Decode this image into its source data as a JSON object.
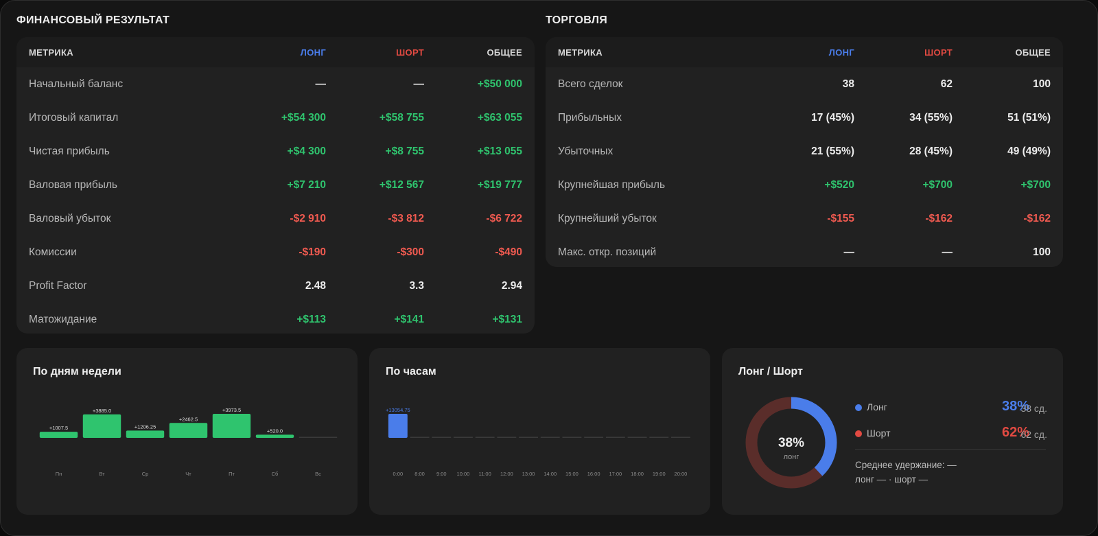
{
  "financial": {
    "title": "ФИНАНСОВЫЙ РЕЗУЛЬТАТ",
    "headers": {
      "metric": "МЕТРИКА",
      "long": "ЛОНГ",
      "short": "ШОРТ",
      "total": "ОБЩЕЕ"
    },
    "rows": [
      {
        "label": "Начальный баланс",
        "long": "—",
        "short": "—",
        "total": "+$50 000",
        "tone": [
          "neu",
          "neu",
          "pos"
        ]
      },
      {
        "label": "Итоговый капитал",
        "long": "+$54 300",
        "short": "+$58 755",
        "total": "+$63 055",
        "tone": [
          "pos",
          "pos",
          "pos"
        ]
      },
      {
        "label": "Чистая прибыль",
        "long": "+$4 300",
        "short": "+$8 755",
        "total": "+$13 055",
        "tone": [
          "pos",
          "pos",
          "pos"
        ]
      },
      {
        "label": "Валовая прибыль",
        "long": "+$7 210",
        "short": "+$12 567",
        "total": "+$19 777",
        "tone": [
          "pos",
          "pos",
          "pos"
        ]
      },
      {
        "label": "Валовый убыток",
        "long": "-$2 910",
        "short": "-$3 812",
        "total": "-$6 722",
        "tone": [
          "neg",
          "neg",
          "neg"
        ]
      },
      {
        "label": "Комиссии",
        "long": "-$190",
        "short": "-$300",
        "total": "-$490",
        "tone": [
          "neg",
          "neg",
          "neg"
        ]
      },
      {
        "label": "Profit Factor",
        "long": "2.48",
        "short": "3.3",
        "total": "2.94",
        "tone": [
          "neu",
          "neu",
          "neu"
        ]
      },
      {
        "label": "Матожидание",
        "long": "+$113",
        "short": "+$141",
        "total": "+$131",
        "tone": [
          "pos",
          "pos",
          "pos"
        ]
      }
    ]
  },
  "trading": {
    "title": "ТОРГОВЛЯ",
    "headers": {
      "metric": "МЕТРИКА",
      "long": "ЛОНГ",
      "short": "ШОРТ",
      "total": "ОБЩЕЕ"
    },
    "rows": [
      {
        "label": "Всего сделок",
        "long": "38",
        "short": "62",
        "total": "100",
        "tone": [
          "neu",
          "neu",
          "neu"
        ]
      },
      {
        "label": "Прибыльных",
        "long": "17 (45%)",
        "short": "34 (55%)",
        "total": "51 (51%)",
        "tone": [
          "neu",
          "neu",
          "neu"
        ]
      },
      {
        "label": "Убыточных",
        "long": "21 (55%)",
        "short": "28 (45%)",
        "total": "49 (49%)",
        "tone": [
          "neu",
          "neu",
          "neu"
        ]
      },
      {
        "label": "Крупнейшая прибыль",
        "long": "+$520",
        "short": "+$700",
        "total": "+$700",
        "tone": [
          "pos",
          "pos",
          "pos"
        ]
      },
      {
        "label": "Крупнейший убыток",
        "long": "-$155",
        "short": "-$162",
        "total": "-$162",
        "tone": [
          "neg",
          "neg",
          "neg"
        ]
      },
      {
        "label": "Макс. откр. позиций",
        "long": "—",
        "short": "—",
        "total": "100",
        "tone": [
          "neu",
          "neu",
          "neu"
        ]
      }
    ]
  },
  "weekday_card": {
    "title": "По дням недели"
  },
  "hours_card": {
    "title": "По часам"
  },
  "longshort_card": {
    "title": "Лонг / Шорт",
    "center_pct": "38%",
    "center_label": "лонг",
    "long": {
      "name": "Лонг",
      "pct": "38%",
      "count": "38 сд."
    },
    "short": {
      "name": "Шорт",
      "pct": "62%",
      "count": "62 сд."
    },
    "avg_hold": "Среднее удержание: —",
    "avg_hold_sub": "лонг — · шорт —"
  },
  "colors": {
    "long": "#4a7dea",
    "short": "#e24a42",
    "positive": "#2fc46e",
    "negative": "#f05a50",
    "donut_short_track": "#5a2d2a",
    "card_bg": "#212121"
  },
  "chart_data": [
    {
      "type": "bar",
      "title": "По дням недели",
      "categories": [
        "Пн",
        "Вт",
        "Ср",
        "Чт",
        "Пт",
        "Сб",
        "Вс"
      ],
      "values": [
        1007.5,
        3885.0,
        1206.25,
        2462.5,
        3973.5,
        520.0,
        0
      ],
      "labels": [
        "+1007.5",
        "+3885.0",
        "+1206.25",
        "+2462.5",
        "+3973.5",
        "+520.0",
        ""
      ],
      "color": "#2fc46e"
    },
    {
      "type": "bar",
      "title": "По часам",
      "categories": [
        "0:00",
        "8:00",
        "9:00",
        "10:00",
        "11:00",
        "12:00",
        "13:00",
        "14:00",
        "15:00",
        "16:00",
        "17:00",
        "18:00",
        "19:00",
        "20:00"
      ],
      "values": [
        13054.75,
        0,
        0,
        0,
        0,
        0,
        0,
        0,
        0,
        0,
        0,
        0,
        0,
        0
      ],
      "labels": [
        "+13054.75",
        "",
        "",
        "",
        "",
        "",
        "",
        "",
        "",
        "",
        "",
        "",
        "",
        ""
      ],
      "color": "#4a7dea"
    },
    {
      "type": "pie",
      "title": "Лонг / Шорт",
      "categories": [
        "Лонг",
        "Шорт"
      ],
      "values": [
        38,
        62
      ],
      "colors": [
        "#4a7dea",
        "#5a2d2a"
      ]
    }
  ]
}
